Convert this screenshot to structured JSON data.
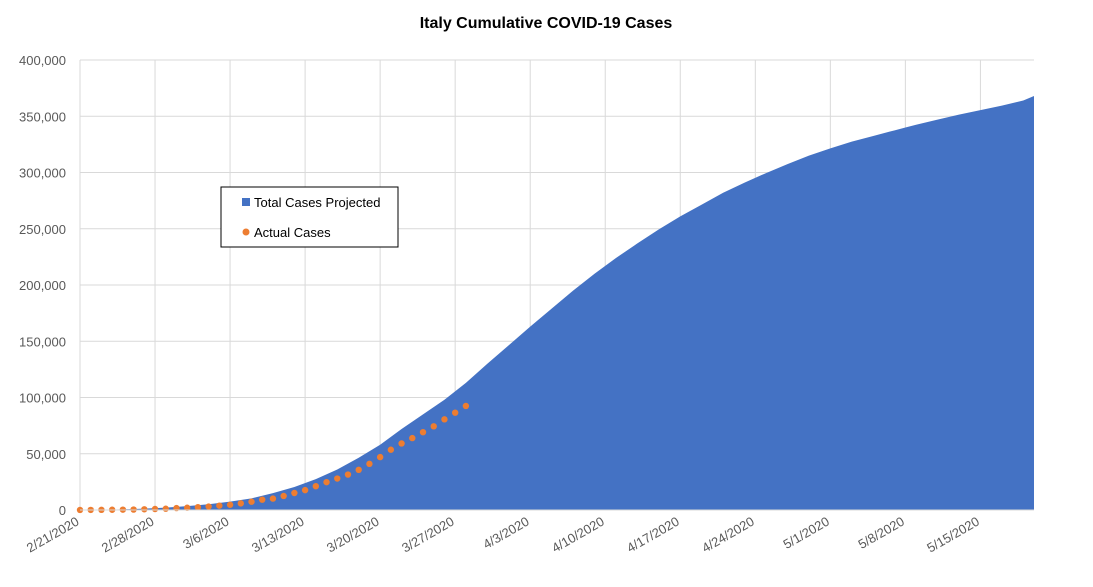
{
  "chart_data": {
    "type": "area",
    "title": "Italy Cumulative COVID-19 Cases",
    "xlabel": "",
    "ylabel": "",
    "ylim": [
      0,
      400000
    ],
    "y_ticks": [
      0,
      50000,
      100000,
      150000,
      200000,
      250000,
      300000,
      350000,
      400000
    ],
    "y_tick_labels": [
      "0",
      "50,000",
      "100,000",
      "150,000",
      "200,000",
      "250,000",
      "300,000",
      "350,000",
      "400,000"
    ],
    "x_range_days": [
      0,
      89
    ],
    "x_ticks_days": [
      0,
      7,
      14,
      21,
      28,
      35,
      42,
      49,
      56,
      63,
      70,
      77,
      84
    ],
    "x_tick_labels": [
      "2/21/2020",
      "2/28/2020",
      "3/6/2020",
      "3/13/2020",
      "3/20/2020",
      "3/27/2020",
      "4/3/2020",
      "4/10/2020",
      "4/17/2020",
      "4/24/2020",
      "5/1/2020",
      "5/8/2020",
      "5/15/2020"
    ],
    "grid": true,
    "legend_position": "upper-left inside plot",
    "colors": {
      "projected": "#4472C4",
      "actual": "#ED7D31"
    },
    "series": [
      {
        "name": "Total Cases Projected",
        "type": "area",
        "x": [
          0,
          2,
          4,
          6,
          8,
          10,
          12,
          14,
          16,
          18,
          20,
          22,
          24,
          26,
          28,
          30,
          32,
          34,
          36,
          38,
          40,
          42,
          44,
          46,
          48,
          50,
          52,
          54,
          56,
          58,
          60,
          62,
          64,
          66,
          68,
          70,
          72,
          74,
          76,
          78,
          80,
          82,
          84,
          86,
          88,
          89
        ],
        "values": [
          0,
          200,
          600,
          1200,
          2100,
          3400,
          5100,
          7400,
          10300,
          15000,
          20500,
          27500,
          36000,
          46500,
          58000,
          72000,
          85000,
          98000,
          113000,
          130000,
          146500,
          163000,
          179000,
          195000,
          210000,
          224000,
          237000,
          249500,
          261000,
          271500,
          282000,
          291000,
          299500,
          307500,
          315000,
          321500,
          327500,
          332500,
          337500,
          342500,
          347000,
          351500,
          355500,
          359500,
          364000,
          368000
        ]
      },
      {
        "name": "Actual Cases",
        "type": "scatter",
        "x": [
          0,
          1,
          2,
          3,
          4,
          5,
          6,
          7,
          8,
          9,
          10,
          11,
          12,
          13,
          14,
          15,
          16,
          17,
          18,
          19,
          20,
          21,
          22,
          23,
          24,
          25,
          26,
          27,
          28,
          29,
          30,
          31,
          32,
          33,
          34,
          35,
          36
        ],
        "values": [
          20,
          79,
          150,
          229,
          322,
          400,
          650,
          888,
          1128,
          1694,
          2036,
          2502,
          3089,
          3858,
          4636,
          5883,
          7375,
          9172,
          10149,
          12462,
          15113,
          17660,
          21157,
          24747,
          27980,
          31506,
          35713,
          41035,
          47021,
          53578,
          59138,
          63927,
          69176,
          74386,
          80589,
          86498,
          92472
        ]
      }
    ]
  }
}
